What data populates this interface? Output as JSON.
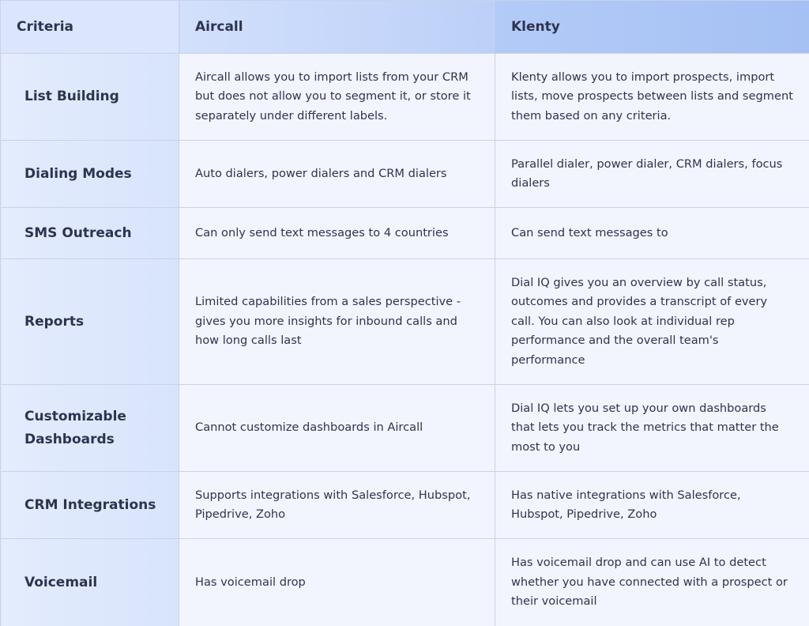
{
  "table": {
    "header": [
      "Criteria",
      "Aircall",
      "Klenty"
    ],
    "rows": [
      [
        "List Building",
        "Aircall allows you to import lists from your CRM but does not allow you to segment it, or store it separately under different labels.",
        "Klenty allows you to import prospects, import lists, move prospects between lists and segment them based on any criteria."
      ],
      [
        "Dialing Modes",
        "Auto dialers, power dialers and CRM dialers",
        "Parallel dialer, power dialer, CRM dialers, focus dialers"
      ],
      [
        "SMS Outreach",
        "Can only send text messages to 4 countries",
        "Can send text messages to"
      ],
      [
        "Reports",
        "Limited capabilities from a sales perspective - gives you more insights for inbound calls and how long calls last",
        "Dial IQ gives you an overview by call status, outcomes and provides a transcript of every call. You can also look at individual rep performance and the overall team's performance"
      ],
      [
        "Customizable Dashboards",
        "Cannot customize dashboards in Aircall",
        "Dial IQ lets you set up your own dashboards that lets you track the metrics that matter the most to you"
      ],
      [
        "CRM Integrations",
        "Supports integrations with Salesforce, Hubspot, Pipedrive, Zoho",
        "Has native integrations with Salesforce, Hubspot, Pipedrive, Zoho"
      ],
      [
        "Voicemail",
        "Has voicemail drop",
        "Has voicemail drop and can use AI to detect whether you have connected with a prospect or their voicemail"
      ]
    ]
  }
}
